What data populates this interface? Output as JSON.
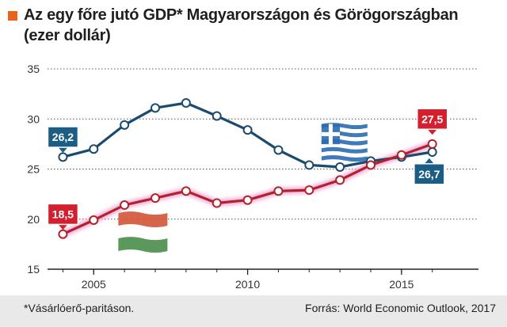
{
  "title_line1": "Az egy főre jutó GDP* Magyarországon és Görögországban",
  "title_line2": "(ezer dollár)",
  "footnote": "*Vásárlóerő-paritáson.",
  "source": "Forrás: World Economic Outlook, 2017",
  "colors": {
    "accent": "#e8631c",
    "greece": "#1a4a6e",
    "hungary": "#b0232a",
    "greece_label_bg": "#1b5d85",
    "hungary_label_bg": "#d41f2f",
    "grid": "#555555"
  },
  "chart_data": {
    "type": "line",
    "x": [
      2004,
      2005,
      2006,
      2007,
      2008,
      2009,
      2010,
      2011,
      2012,
      2013,
      2014,
      2015,
      2016
    ],
    "xticks": [
      "2005",
      "2010",
      "2015"
    ],
    "xtick_values": [
      2005,
      2010,
      2015
    ],
    "yticks": [
      "15",
      "20",
      "25",
      "30",
      "35"
    ],
    "ytick_values": [
      15,
      20,
      25,
      30,
      35
    ],
    "ylim": [
      15,
      35
    ],
    "xlim": [
      2003.5,
      2017.5
    ],
    "grid": "horizontal dotted",
    "series": [
      {
        "key": "greece",
        "values": [
          26.2,
          27.0,
          29.4,
          31.1,
          31.6,
          30.3,
          28.9,
          26.9,
          25.4,
          25.2,
          25.8,
          26.2,
          26.7
        ],
        "start_label": "26,2",
        "end_label": "26,7",
        "flag": "greece-flag"
      },
      {
        "key": "hungary",
        "values": [
          18.5,
          19.9,
          21.4,
          22.1,
          22.8,
          21.6,
          21.9,
          22.8,
          22.9,
          23.9,
          25.4,
          26.4,
          27.5
        ],
        "start_label": "18,5",
        "end_label": "27,5",
        "flag": "hungary-flag"
      }
    ]
  }
}
